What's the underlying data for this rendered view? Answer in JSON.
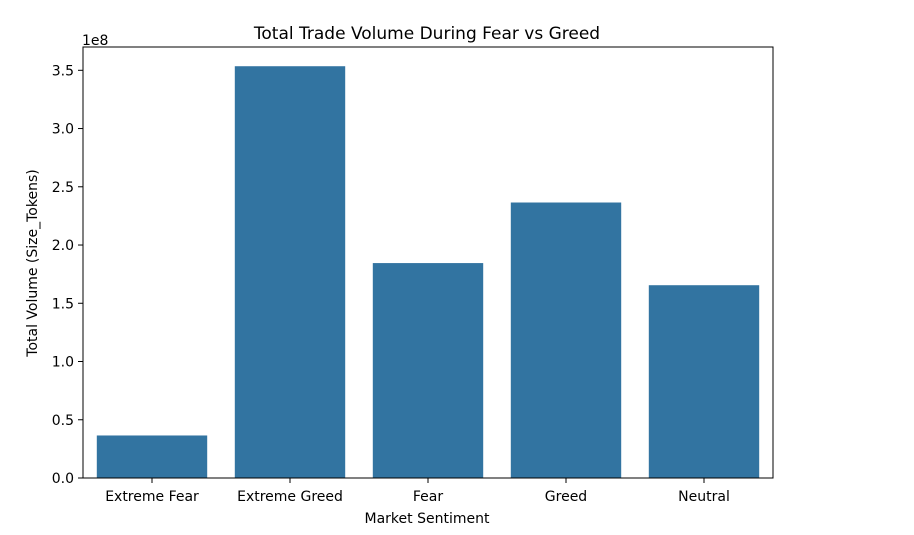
{
  "chart_data": {
    "type": "bar",
    "title": "Total Trade Volume During Fear vs Greed",
    "xlabel": "Market Sentiment",
    "ylabel": "Total Volume (Size_Tokens)",
    "y_multiplier_label": "1e8",
    "categories": [
      "Extreme Fear",
      "Extreme Greed",
      "Fear",
      "Greed",
      "Neutral"
    ],
    "values": [
      0.365,
      3.535,
      1.845,
      2.365,
      1.655
    ],
    "value_scale": 100000000,
    "ylim": [
      0,
      3.7
    ],
    "yticks": [
      0.0,
      0.5,
      1.0,
      1.5,
      2.0,
      2.5,
      3.0,
      3.5
    ],
    "ytick_labels": [
      "0.0",
      "0.5",
      "1.0",
      "1.5",
      "2.0",
      "2.5",
      "3.0",
      "3.5"
    ],
    "grid": false,
    "legend": "none",
    "bar_color": "#3274a1"
  }
}
